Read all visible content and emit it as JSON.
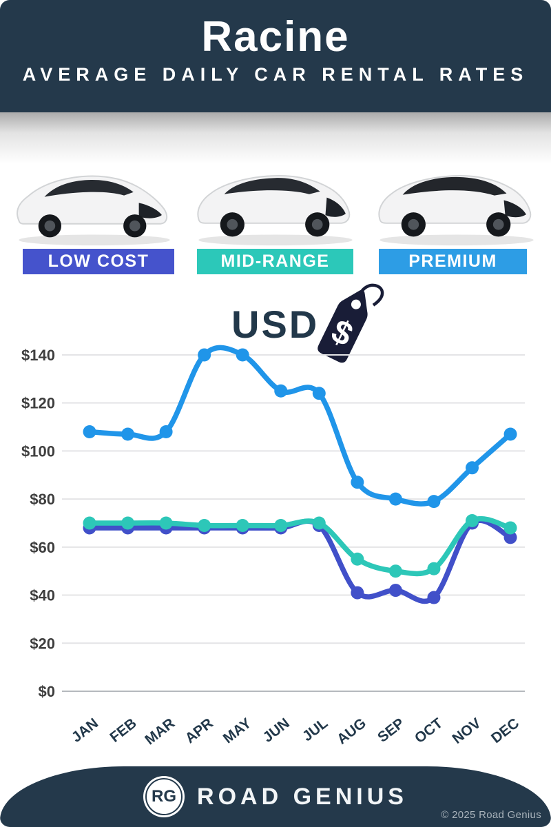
{
  "header": {
    "city": "Racine",
    "subtitle": "AVERAGE DAILY CAR RENTAL RATES",
    "background_color": "#24394B"
  },
  "categories": [
    {
      "label": "LOW COST",
      "color": "#4553CC",
      "car_icon": "hatchback-car-image"
    },
    {
      "label": "MID-RANGE",
      "color": "#2CC8B9",
      "car_icon": "suv-car-image"
    },
    {
      "label": "PREMIUM",
      "color": "#2D9DE5",
      "car_icon": "luxury-suv-car-image"
    }
  ],
  "price_tag": {
    "symbol": "$",
    "color": "#191D37"
  },
  "chart_data": {
    "type": "line",
    "title": "USD",
    "categories": [
      "JAN",
      "FEB",
      "MAR",
      "APR",
      "MAY",
      "JUN",
      "JUL",
      "AUG",
      "SEP",
      "OCT",
      "NOV",
      "DEC"
    ],
    "series": [
      {
        "name": "Low Cost",
        "color": "#4150C9",
        "values": [
          68,
          68,
          68,
          68,
          68,
          68,
          69,
          41,
          42,
          39,
          70,
          64
        ]
      },
      {
        "name": "Mid-Range",
        "color": "#2DC7B8",
        "values": [
          70,
          70,
          70,
          69,
          69,
          69,
          70,
          55,
          50,
          51,
          71,
          68
        ]
      },
      {
        "name": "Premium",
        "color": "#2095E9",
        "values": [
          108,
          107,
          108,
          140,
          140,
          125,
          124,
          87,
          80,
          79,
          93,
          107
        ]
      }
    ],
    "yticks": [
      0,
      20,
      40,
      60,
      80,
      100,
      120,
      140
    ],
    "ytick_labels": [
      "$0",
      "$20",
      "$40",
      "$60",
      "$80",
      "$100",
      "$120",
      "$140"
    ],
    "ylim": [
      0,
      150
    ],
    "grid": true,
    "legend_position": "none (series color-coded to category bands above)"
  },
  "footer": {
    "logo_initials": "RG",
    "brand": "ROAD GENIUS",
    "copyright": "© 2025 Road Genius"
  }
}
